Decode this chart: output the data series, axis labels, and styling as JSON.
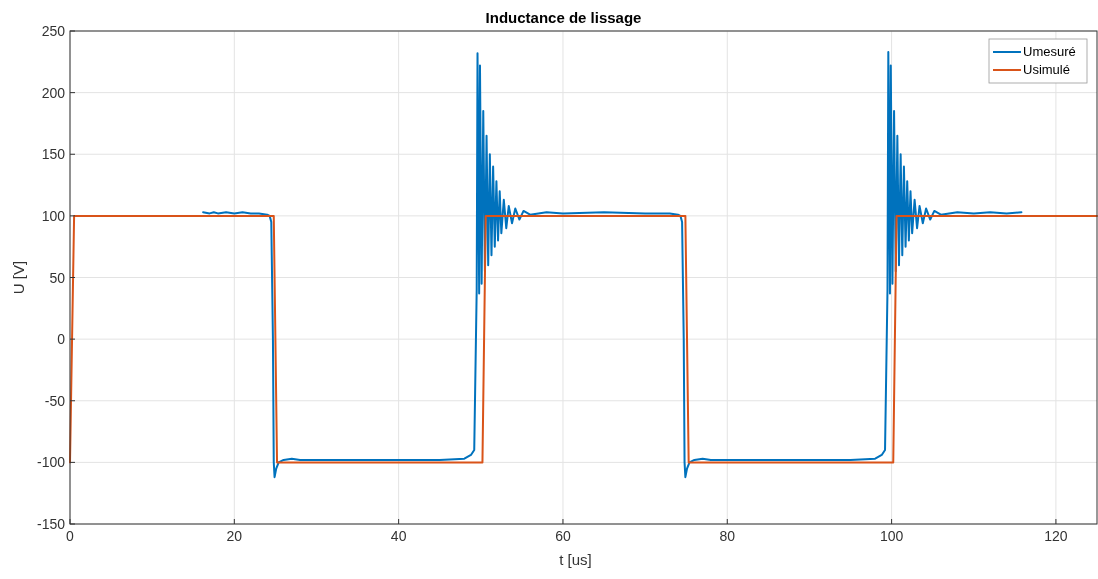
{
  "chart_data": {
    "type": "line",
    "title": "Inductance de lissage",
    "xlabel": "t [us]",
    "ylabel": "U [V]",
    "xlim": [
      0,
      125
    ],
    "ylim": [
      -150,
      250
    ],
    "xticks": [
      0,
      20,
      40,
      60,
      80,
      100,
      120
    ],
    "yticks": [
      -150,
      -100,
      -50,
      0,
      50,
      100,
      150,
      200,
      250
    ],
    "grid": true,
    "legend": "top right",
    "line_style": "solid",
    "series": [
      {
        "name": "Umesuré",
        "color": "#0072bd",
        "x": [
          16.2,
          17,
          17.5,
          18,
          19,
          20,
          21,
          22,
          23,
          24,
          24.3,
          24.5,
          24.7,
          24.8,
          24.9,
          25.1,
          25.4,
          26,
          27,
          28,
          30,
          35,
          40,
          45,
          48,
          48.8,
          49.2,
          49.5,
          49.6,
          49.8,
          49.9,
          50.1,
          50.3,
          50.5,
          50.7,
          50.9,
          51.1,
          51.3,
          51.5,
          51.7,
          51.9,
          52.1,
          52.3,
          52.5,
          52.8,
          53.1,
          53.4,
          53.8,
          54.2,
          54.7,
          55.2,
          56,
          58,
          60,
          65,
          70,
          73,
          74,
          74.3,
          74.5,
          74.7,
          74.8,
          74.9,
          75.1,
          75.4,
          76,
          77,
          78,
          80,
          85,
          90,
          95,
          98,
          98.8,
          99.2,
          99.5,
          99.6,
          99.8,
          99.9,
          100.1,
          100.3,
          100.5,
          100.7,
          100.9,
          101.1,
          101.3,
          101.5,
          101.7,
          101.9,
          102.1,
          102.3,
          102.5,
          102.8,
          103.1,
          103.4,
          103.8,
          104.2,
          104.7,
          105.2,
          106,
          108,
          110,
          112,
          114,
          115.8
        ],
        "values": [
          103,
          102,
          103,
          102,
          103,
          102,
          103,
          102,
          102,
          101,
          100,
          95,
          0,
          -100,
          -112,
          -105,
          -100,
          -98,
          -97,
          -98,
          -98,
          -98,
          -98,
          -98,
          -97,
          -94,
          -90,
          40,
          232,
          37,
          222,
          45,
          185,
          55,
          165,
          60,
          150,
          68,
          140,
          75,
          128,
          80,
          120,
          86,
          113,
          90,
          108,
          94,
          106,
          97,
          104,
          101,
          103,
          102,
          103,
          102,
          102,
          101,
          100,
          95,
          0,
          -100,
          -112,
          -105,
          -100,
          -98,
          -97,
          -98,
          -98,
          -98,
          -98,
          -98,
          -97,
          -94,
          -90,
          40,
          233,
          37,
          222,
          45,
          185,
          55,
          165,
          60,
          150,
          68,
          140,
          75,
          128,
          80,
          120,
          86,
          113,
          90,
          108,
          94,
          106,
          97,
          104,
          101,
          103,
          102,
          103,
          102,
          103
        ]
      },
      {
        "name": "Usimulé",
        "color": "#d95319",
        "x": [
          0,
          0.5,
          24.8,
          25.2,
          50.2,
          50.6,
          74.9,
          75.3,
          100.2,
          100.6,
          125
        ],
        "values": [
          -100,
          100,
          100,
          -100,
          -100,
          100,
          100,
          -100,
          -100,
          100,
          100
        ]
      }
    ]
  }
}
